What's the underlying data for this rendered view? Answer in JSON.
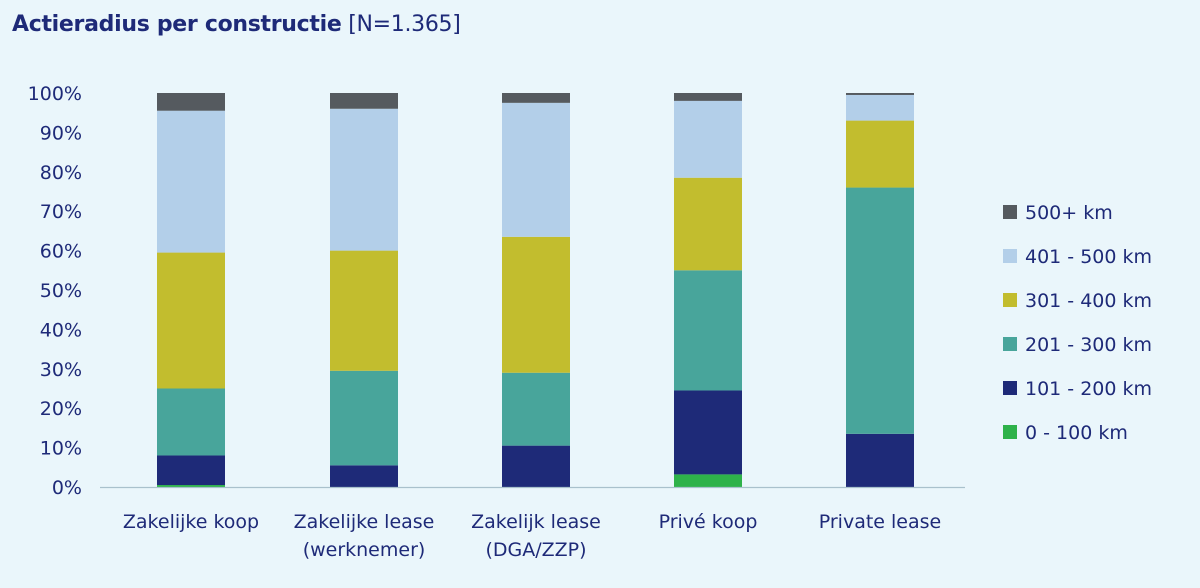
{
  "chart_data": {
    "type": "bar",
    "stacked": true,
    "title": "Actieradius per constructie",
    "subtitle": "[N=1.365]",
    "xlabel": "",
    "ylabel": "",
    "ylim": [
      0,
      100
    ],
    "yticks": [
      "0%",
      "10%",
      "20%",
      "30%",
      "40%",
      "50%",
      "60%",
      "70%",
      "80%",
      "90%",
      "100%"
    ],
    "categories": [
      [
        "Zakelijke koop"
      ],
      [
        "Zakelijke lease",
        "(werknemer)"
      ],
      [
        "Zakelijk lease",
        "(DGA/ZZP)"
      ],
      [
        "Privé koop"
      ],
      [
        "Private lease"
      ]
    ],
    "series": [
      {
        "name": "0 - 100 km",
        "color": "#2eb24a",
        "values": [
          0.5,
          0,
          0,
          3.2,
          0
        ]
      },
      {
        "name": "101 - 200 km",
        "color": "#1e2a78",
        "values": [
          7.5,
          5.5,
          10.5,
          21.3,
          13.5
        ]
      },
      {
        "name": "201 - 300 km",
        "color": "#48a59b",
        "values": [
          17.0,
          24.0,
          18.5,
          30.5,
          62.5
        ]
      },
      {
        "name": "301 - 400 km",
        "color": "#c2bd2e",
        "values": [
          34.5,
          30.5,
          34.5,
          23.5,
          17.0
        ]
      },
      {
        "name": "401 - 500 km",
        "color": "#b3cfe9",
        "values": [
          36.0,
          36.0,
          34.0,
          19.5,
          6.5
        ]
      },
      {
        "name": "500+ km",
        "color": "#555a5f",
        "values": [
          4.5,
          4.0,
          2.5,
          2.0,
          0.5
        ]
      }
    ],
    "legend_position": "right",
    "grid": false
  }
}
